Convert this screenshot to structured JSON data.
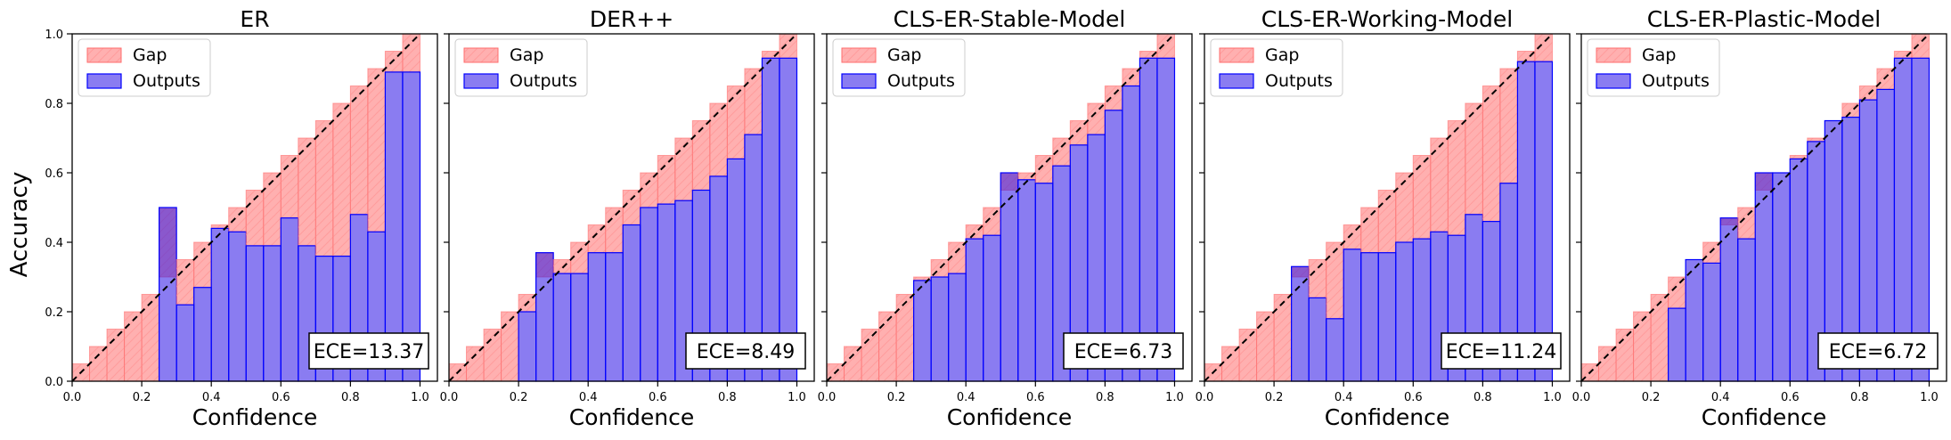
{
  "figure": {
    "ylabel": "Accuracy",
    "xlabel": "Confidence",
    "legend": {
      "gap_label": "Gap",
      "outputs_label": "Outputs"
    },
    "ece_prefix": "ECE=",
    "colors": {
      "gap_fill": "#ff6e6e",
      "gap_hatch": "#ff9c9c",
      "outputs_fill": "#2a10e6",
      "outputs_edge": "#0000ff",
      "diagonal": "#000000"
    },
    "xticks": [
      "0.0",
      "0.2",
      "0.4",
      "0.6",
      "0.8",
      "1.0"
    ],
    "yticks": [
      "0.0",
      "0.2",
      "0.4",
      "0.6",
      "0.8",
      "1.0"
    ]
  },
  "chart_data": [
    {
      "type": "bar",
      "title": "ER",
      "ece": "13.37",
      "bins": [
        0.05,
        0.1,
        0.15,
        0.2,
        0.25,
        0.3,
        0.35,
        0.4,
        0.45,
        0.5,
        0.55,
        0.6,
        0.65,
        0.7,
        0.75,
        0.8,
        0.85,
        0.9,
        0.95,
        1.0
      ],
      "outputs": [
        0,
        0,
        0,
        0,
        0,
        0.5,
        0.22,
        0.27,
        0.44,
        0.43,
        0.39,
        0.39,
        0.47,
        0.39,
        0.36,
        0.36,
        0.48,
        0.43,
        0.89,
        0.89
      ],
      "xlim": [
        0,
        1.05
      ],
      "ylim": [
        0,
        1.0
      ]
    },
    {
      "type": "bar",
      "title": "DER++",
      "ece": "8.49",
      "bins": [
        0.05,
        0.1,
        0.15,
        0.2,
        0.25,
        0.3,
        0.35,
        0.4,
        0.45,
        0.5,
        0.55,
        0.6,
        0.65,
        0.7,
        0.75,
        0.8,
        0.85,
        0.9,
        0.95,
        1.0
      ],
      "outputs": [
        0,
        0,
        0,
        0,
        0.2,
        0.37,
        0.31,
        0.31,
        0.37,
        0.37,
        0.45,
        0.5,
        0.51,
        0.52,
        0.55,
        0.59,
        0.64,
        0.71,
        0.93,
        0.93
      ],
      "xlim": [
        0,
        1.05
      ],
      "ylim": [
        0,
        1.0
      ]
    },
    {
      "type": "bar",
      "title": "CLS-ER-Stable-Model",
      "ece": "6.73",
      "bins": [
        0.05,
        0.1,
        0.15,
        0.2,
        0.25,
        0.3,
        0.35,
        0.4,
        0.45,
        0.5,
        0.55,
        0.6,
        0.65,
        0.7,
        0.75,
        0.8,
        0.85,
        0.9,
        0.95,
        1.0
      ],
      "outputs": [
        0,
        0,
        0,
        0,
        0,
        0.29,
        0.3,
        0.31,
        0.41,
        0.42,
        0.6,
        0.58,
        0.57,
        0.62,
        0.68,
        0.71,
        0.78,
        0.85,
        0.93,
        0.93
      ],
      "xlim": [
        0,
        1.05
      ],
      "ylim": [
        0,
        1.0
      ]
    },
    {
      "type": "bar",
      "title": "CLS-ER-Working-Model",
      "ece": "11.24",
      "bins": [
        0.05,
        0.1,
        0.15,
        0.2,
        0.25,
        0.3,
        0.35,
        0.4,
        0.45,
        0.5,
        0.55,
        0.6,
        0.65,
        0.7,
        0.75,
        0.8,
        0.85,
        0.9,
        0.95,
        1.0
      ],
      "outputs": [
        0,
        0,
        0,
        0,
        0,
        0.33,
        0.24,
        0.18,
        0.38,
        0.37,
        0.37,
        0.4,
        0.41,
        0.43,
        0.42,
        0.48,
        0.46,
        0.57,
        0.92,
        0.92
      ],
      "xlim": [
        0,
        1.05
      ],
      "ylim": [
        0,
        1.0
      ]
    },
    {
      "type": "bar",
      "title": "CLS-ER-Plastic-Model",
      "ece": "6.72",
      "bins": [
        0.05,
        0.1,
        0.15,
        0.2,
        0.25,
        0.3,
        0.35,
        0.4,
        0.45,
        0.5,
        0.55,
        0.6,
        0.65,
        0.7,
        0.75,
        0.8,
        0.85,
        0.9,
        0.95,
        1.0
      ],
      "outputs": [
        0,
        0,
        0,
        0,
        0,
        0.21,
        0.35,
        0.34,
        0.47,
        0.41,
        0.6,
        0.6,
        0.64,
        0.69,
        0.75,
        0.76,
        0.81,
        0.84,
        0.93,
        0.93
      ],
      "xlim": [
        0,
        1.05
      ],
      "ylim": [
        0,
        1.0
      ]
    }
  ]
}
